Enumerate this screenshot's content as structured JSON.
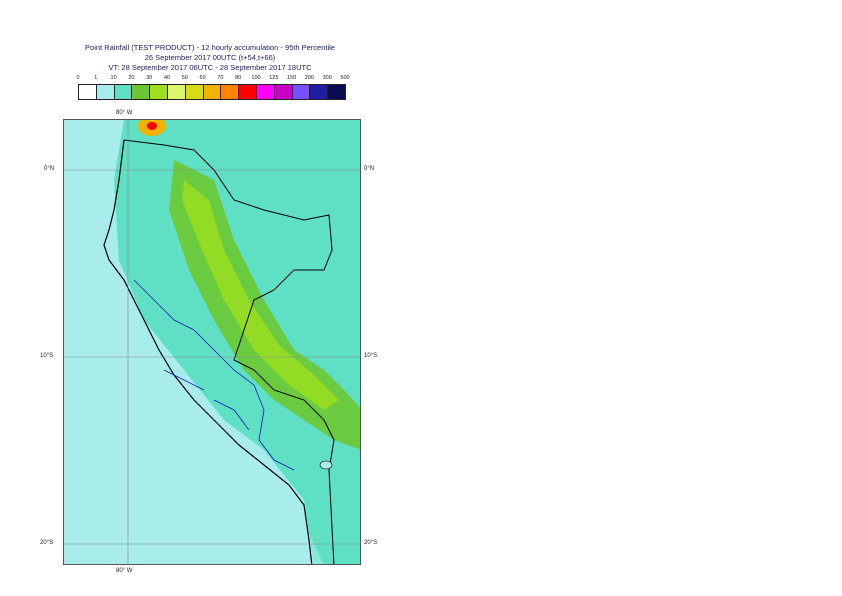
{
  "title": {
    "line1": "Point Rainfall (TEST PRODUCT) - 12 hourly accumulation - 95th Percentile",
    "line2": "26 September 2017 00UTC (t+54,t+66)",
    "line3": "VT: 28 September 2017 06UTC - 28 September 2017 18UTC"
  },
  "legend": {
    "thresholds": [
      "0",
      "1",
      "10",
      "20",
      "30",
      "40",
      "50",
      "60",
      "70",
      "80",
      "100",
      "125",
      "150",
      "200",
      "300",
      "500"
    ],
    "colors": [
      "#ffffff",
      "#a8ecec",
      "#5fdfc4",
      "#6cc832",
      "#9ee01e",
      "#e0f56e",
      "#d8dc14",
      "#f0b400",
      "#ff8200",
      "#ff0000",
      "#ff00ff",
      "#c800c8",
      "#7850ff",
      "#1e1ea0",
      "#0a0a50"
    ]
  },
  "map": {
    "lat_labels_left": [
      "0°N",
      "10°S",
      "20°S"
    ],
    "lat_labels_right": [
      "0°N",
      "10°S",
      "20°S"
    ],
    "lon_label_top": "80° W",
    "lon_label_bottom": "80° W",
    "ocean_color": "#a8ecec",
    "land_low_color": "#5fdfc4",
    "rain_mid_color": "#6cc832",
    "rain_high_color": "#9ee01e"
  }
}
